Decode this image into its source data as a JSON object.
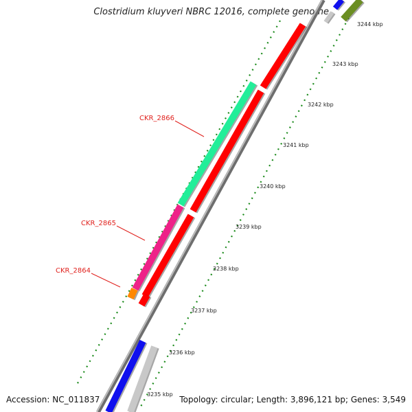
{
  "title": "Clostridium kluyveri NBRC 12016, complete genome",
  "footer": {
    "accession": "Accession: NC_011837",
    "summary": "Topology: circular; Length: 3,896,121 bp; Genes: 3,549"
  },
  "colors": {
    "gene_red": "#ff0000",
    "gene_green": "#22ee99",
    "gene_pink": "#ee2288",
    "gene_orange": "#ff8800",
    "gene_blue": "#1010ee",
    "gene_olive": "#6b8e23",
    "gene_grey": "#c8c8c8",
    "ruler_green": "#1a8a1a",
    "label_red": "#e0201c"
  },
  "ticks": [
    "3235 kbp",
    "3236 kbp",
    "3237 kbp",
    "3238 kbp",
    "3239 kbp",
    "3240 kbp",
    "3241 kbp",
    "3242 kbp",
    "3243 kbp",
    "3244 kbp"
  ],
  "gene_labels": [
    "CKR_2866",
    "CKR_2865",
    "CKR_2864"
  ]
}
